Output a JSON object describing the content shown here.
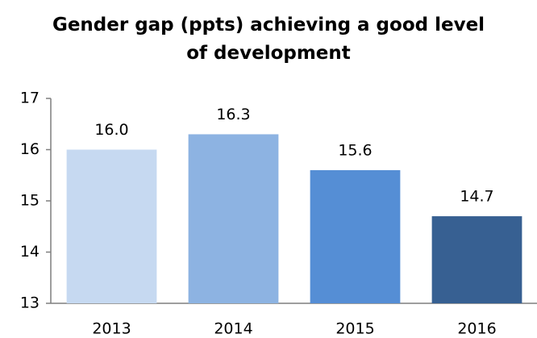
{
  "chart_data": {
    "type": "bar",
    "title": "Gender gap (ppts) achieving a good level of development",
    "categories": [
      "2013",
      "2014",
      "2015",
      "2016"
    ],
    "values": [
      16.0,
      16.3,
      15.6,
      14.7
    ],
    "value_labels": [
      "16.0",
      "16.3",
      "15.6",
      "14.7"
    ],
    "colors": [
      "#c6d9f1",
      "#8db3e2",
      "#558ed5",
      "#376092"
    ],
    "ylim": [
      13,
      17
    ],
    "yticks": [
      13,
      14,
      15,
      16,
      17
    ],
    "grid": false
  }
}
